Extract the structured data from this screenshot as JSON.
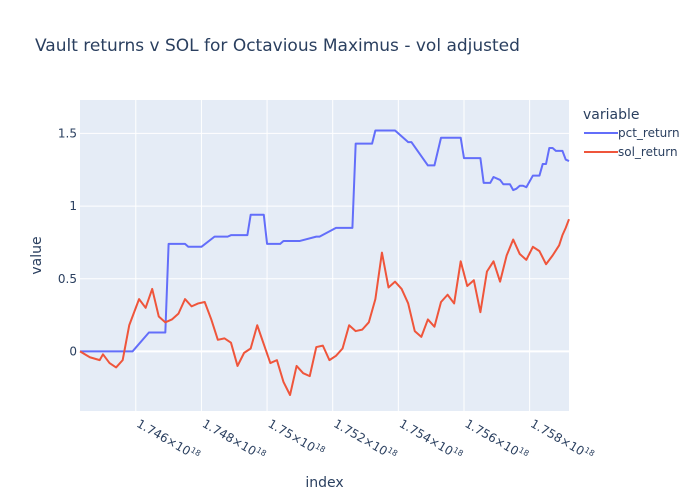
{
  "chart_data": {
    "type": "line",
    "title": "Vault returns v SOL for Octavious Maximus - vol adjusted",
    "xlabel": "index",
    "ylabel": "value",
    "xlim": [
      1.7443e+18,
      1.7592e+18
    ],
    "ylim": [
      -0.41,
      1.73
    ],
    "x_ticks": [
      {
        "value": 1.746e+18,
        "mant": "1.746",
        "exp": "18"
      },
      {
        "value": 1.748e+18,
        "mant": "1.748",
        "exp": "18"
      },
      {
        "value": 1.75e+18,
        "mant": "1.75",
        "exp": "18"
      },
      {
        "value": 1.752e+18,
        "mant": "1.752",
        "exp": "18"
      },
      {
        "value": 1.754e+18,
        "mant": "1.754",
        "exp": "18"
      },
      {
        "value": 1.756e+18,
        "mant": "1.756",
        "exp": "18"
      },
      {
        "value": 1.758e+18,
        "mant": "1.758",
        "exp": "18"
      }
    ],
    "y_ticks": [
      {
        "value": 0,
        "label": "0"
      },
      {
        "value": 0.5,
        "label": "0.5"
      },
      {
        "value": 1,
        "label": "1"
      },
      {
        "value": 1.5,
        "label": "1.5"
      }
    ],
    "grid": true,
    "legend": {
      "title": "variable",
      "position": "right"
    },
    "series": [
      {
        "name": "pct_return",
        "color": "#636efa",
        "x": [
          1.7443e+18,
          1.7448e+18,
          1.7452e+18,
          1.7454e+18,
          1.7458e+18,
          1.7459e+18,
          1.7464e+18,
          1.7469e+18,
          1.747e+18,
          1.7474e+18,
          1.7475e+18,
          1.7476e+18,
          1.7479e+18,
          1.748e+18,
          1.7484e+18,
          1.7485e+18,
          1.7488e+18,
          1.7489e+18,
          1.7494e+18,
          1.7495e+18,
          1.7499e+18,
          1.75e+18,
          1.7504e+18,
          1.7505e+18,
          1.7509e+18,
          1.751e+18,
          1.7515e+18,
          1.7516e+18,
          1.7521e+18,
          1.7522e+18,
          1.7526e+18,
          1.7527e+18,
          1.7532e+18,
          1.7533e+18,
          1.7538e+18,
          1.7539e+18,
          1.7543e+18,
          1.7544e+18,
          1.7549e+18,
          1.755e+18,
          1.7551e+18,
          1.7553e+18,
          1.7554e+18,
          1.7559e+18,
          1.756e+18,
          1.7561e+18,
          1.7563e+18,
          1.7565e+18,
          1.7566e+18,
          1.7568e+18,
          1.7569e+18,
          1.7571e+18,
          1.7572e+18,
          1.7574e+18,
          1.7575e+18,
          1.7576e+18,
          1.7577e+18,
          1.7578e+18,
          1.7579e+18,
          1.7581e+18,
          1.7583e+18,
          1.7584e+18,
          1.7585e+18,
          1.7586e+18,
          1.7587e+18,
          1.7588e+18,
          1.7589e+18,
          1.759e+18,
          1.7591e+18,
          1.7592e+18
        ],
        "values": [
          0.0,
          0.0,
          0.0,
          0.0,
          0.0,
          0.0,
          0.13,
          0.13,
          0.74,
          0.74,
          0.74,
          0.72,
          0.72,
          0.72,
          0.79,
          0.79,
          0.79,
          0.8,
          0.8,
          0.94,
          0.94,
          0.74,
          0.74,
          0.76,
          0.76,
          0.76,
          0.79,
          0.79,
          0.85,
          0.85,
          0.85,
          1.43,
          1.43,
          1.52,
          1.52,
          1.52,
          1.44,
          1.44,
          1.28,
          1.28,
          1.28,
          1.47,
          1.47,
          1.47,
          1.33,
          1.33,
          1.33,
          1.33,
          1.16,
          1.16,
          1.2,
          1.18,
          1.15,
          1.15,
          1.11,
          1.12,
          1.14,
          1.14,
          1.13,
          1.21,
          1.21,
          1.29,
          1.29,
          1.4,
          1.4,
          1.38,
          1.38,
          1.38,
          1.32,
          1.31
        ]
      },
      {
        "name": "sol_return",
        "color": "#ef553b",
        "x": [
          1.7443e+18,
          1.7446e+18,
          1.7449e+18,
          1.745e+18,
          1.7452e+18,
          1.7454e+18,
          1.7456e+18,
          1.7458e+18,
          1.7461e+18,
          1.7463e+18,
          1.7465e+18,
          1.7467e+18,
          1.7469e+18,
          1.7471e+18,
          1.7473e+18,
          1.7475e+18,
          1.7477e+18,
          1.7479e+18,
          1.7481e+18,
          1.7483e+18,
          1.7485e+18,
          1.7487e+18,
          1.7489e+18,
          1.7491e+18,
          1.7493e+18,
          1.7495e+18,
          1.7497e+18,
          1.7499e+18,
          1.7501e+18,
          1.7503e+18,
          1.7505e+18,
          1.7507e+18,
          1.7509e+18,
          1.7511e+18,
          1.7513e+18,
          1.7515e+18,
          1.7517e+18,
          1.7519e+18,
          1.7521e+18,
          1.7523e+18,
          1.7525e+18,
          1.7527e+18,
          1.7529e+18,
          1.7531e+18,
          1.7533e+18,
          1.7535e+18,
          1.7537e+18,
          1.7539e+18,
          1.7541e+18,
          1.7543e+18,
          1.7545e+18,
          1.7547e+18,
          1.7549e+18,
          1.7551e+18,
          1.7553e+18,
          1.7555e+18,
          1.7557e+18,
          1.7559e+18,
          1.7561e+18,
          1.7563e+18,
          1.7565e+18,
          1.7567e+18,
          1.7569e+18,
          1.7571e+18,
          1.7573e+18,
          1.7575e+18,
          1.7577e+18,
          1.7579e+18,
          1.7581e+18,
          1.7583e+18,
          1.7585e+18,
          1.7587e+18,
          1.7589e+18,
          1.759e+18,
          1.7591e+18,
          1.7592e+18
        ],
        "values": [
          0.0,
          -0.04,
          -0.06,
          -0.02,
          -0.08,
          -0.11,
          -0.06,
          0.18,
          0.36,
          0.3,
          0.43,
          0.24,
          0.2,
          0.22,
          0.26,
          0.36,
          0.31,
          0.33,
          0.34,
          0.22,
          0.08,
          0.09,
          0.06,
          -0.1,
          -0.01,
          0.02,
          0.18,
          0.05,
          -0.08,
          -0.06,
          -0.21,
          -0.3,
          -0.1,
          -0.15,
          -0.17,
          0.03,
          0.04,
          -0.06,
          -0.03,
          0.02,
          0.18,
          0.14,
          0.15,
          0.2,
          0.36,
          0.68,
          0.44,
          0.48,
          0.43,
          0.33,
          0.14,
          0.1,
          0.22,
          0.17,
          0.34,
          0.39,
          0.33,
          0.62,
          0.45,
          0.49,
          0.27,
          0.55,
          0.62,
          0.48,
          0.66,
          0.77,
          0.67,
          0.63,
          0.72,
          0.69,
          0.6,
          0.66,
          0.73,
          0.8,
          0.85,
          0.91
        ]
      }
    ]
  }
}
